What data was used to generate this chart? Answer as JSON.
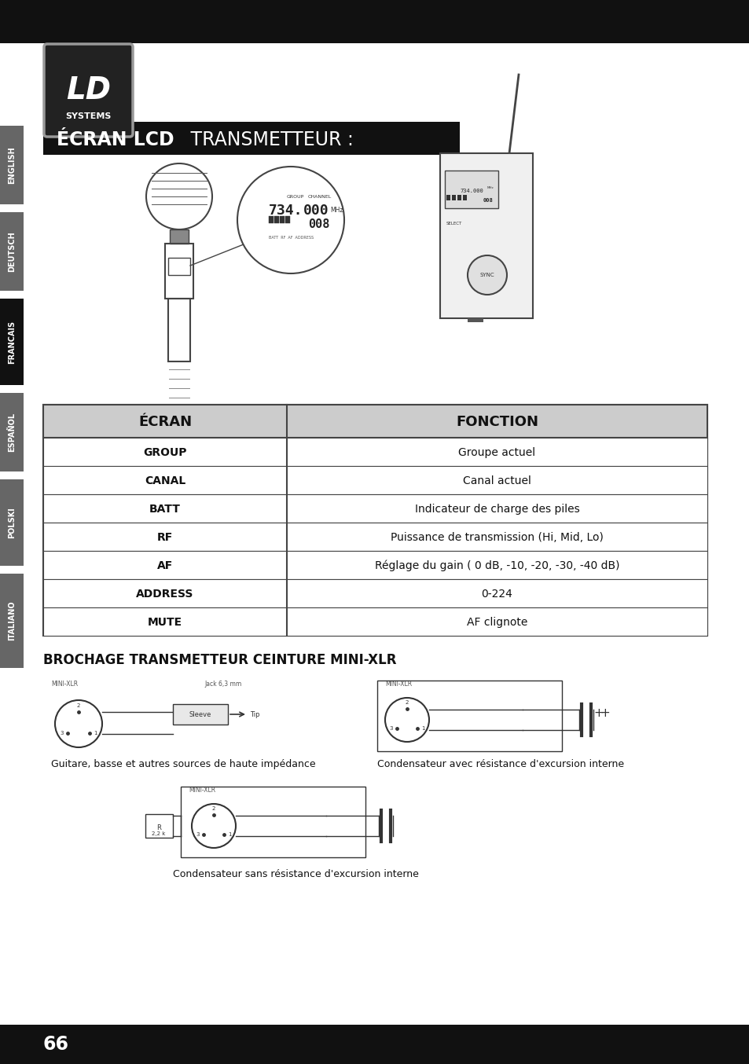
{
  "title_bold": "ÉCRAN LCD",
  "title_normal": " TRANSMETTEUR :",
  "table_header": [
    "ÉCRAN",
    "FONCTION"
  ],
  "table_rows": [
    [
      "GROUP",
      "Groupe actuel"
    ],
    [
      "CANAL",
      "Canal actuel"
    ],
    [
      "BATT",
      "Indicateur de charge des piles"
    ],
    [
      "RF",
      "Puissance de transmission (Hi, Mid, Lo)"
    ],
    [
      "AF",
      "Réglage du gain ( 0 dB, -10, -20, -30, -40 dB)"
    ],
    [
      "ADDRESS",
      "0-224"
    ],
    [
      "MUTE",
      "AF clignote"
    ]
  ],
  "section2_title": "BROCHAGE TRANSMETTEUR CEINTURE MINI-XLR",
  "diagram1_label": "Guitare, basse et autres sources de haute impédance",
  "diagram2_label": "Condensateur avec résistance d'excursion interne",
  "diagram3_label": "Condensateur sans résistance d'excursion interne",
  "side_tabs": [
    "ENGLISH",
    "DEUTSCH",
    "FRANCAIS",
    "ESPAÑOL",
    "POLSKI",
    "ITALIANO"
  ],
  "active_tab": "FRANCAIS",
  "page_number": "66",
  "bg_color": "#ffffff",
  "tab_inactive_color": "#666666",
  "tab_active_color": "#111111",
  "header_color": "#111111",
  "table_header_bg": "#cccccc",
  "table_border_color": "#444444",
  "title_bg_color": "#111111",
  "title_text_color": "#ffffff",
  "footer_color": "#111111"
}
